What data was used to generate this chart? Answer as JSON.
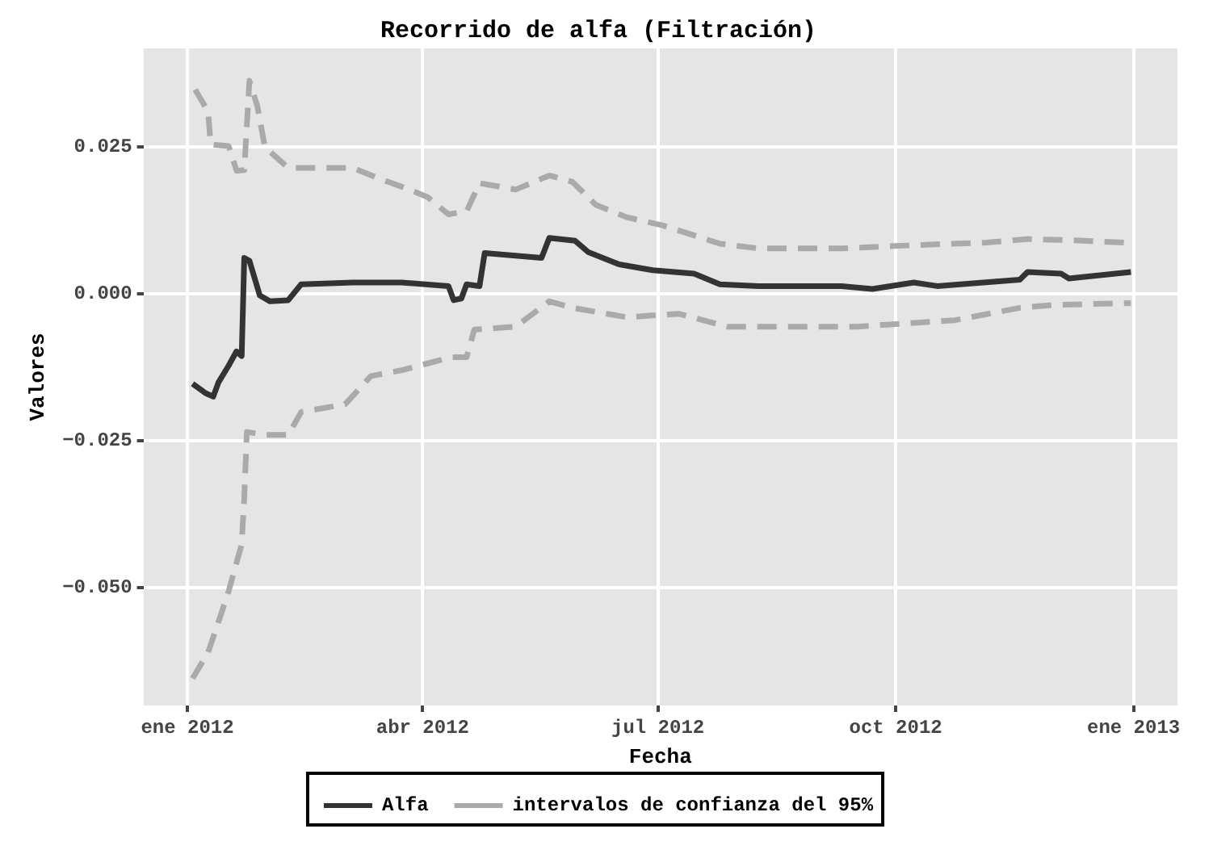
{
  "chart_data": {
    "type": "line",
    "title": "Recorrido de alfa (Filtración)",
    "xlabel": "Fecha",
    "ylabel": "Valores",
    "xlim": [
      "2011-12-15",
      "2013-01-18"
    ],
    "xticks": [
      {
        "value": "2012-01-01",
        "label": "ene 2012"
      },
      {
        "value": "2012-04-01",
        "label": "abr 2012"
      },
      {
        "value": "2012-07-01",
        "label": "jul 2012"
      },
      {
        "value": "2012-10-01",
        "label": "oct 2012"
      },
      {
        "value": "2013-01-01",
        "label": "ene 2013"
      }
    ],
    "ylim": [
      -0.07,
      0.0417
    ],
    "yticks": [
      {
        "value": -0.05,
        "label": "−0.050"
      },
      {
        "value": -0.025,
        "label": "−0.025"
      },
      {
        "value": 0,
        "label": "0.000"
      },
      {
        "value": 0.025,
        "label": "0.025"
      }
    ],
    "grid": true,
    "legend": "bottom",
    "marker": "none",
    "series": [
      {
        "name": "Alfa",
        "color": "#333333",
        "line_style": "solid",
        "x": [
          "2012-01-03",
          "2012-01-08",
          "2012-01-11",
          "2012-01-13",
          "2012-01-17",
          "2012-01-20",
          "2012-01-22",
          "2012-01-23",
          "2012-01-25",
          "2012-01-29",
          "2012-02-02",
          "2012-02-09",
          "2012-02-14",
          "2012-03-05",
          "2012-03-24",
          "2012-04-11",
          "2012-04-13",
          "2012-04-16",
          "2012-04-18",
          "2012-04-23",
          "2012-04-25",
          "2012-05-17",
          "2012-05-20",
          "2012-05-30",
          "2012-06-04",
          "2012-06-16",
          "2012-06-29",
          "2012-07-15",
          "2012-07-25",
          "2012-08-09",
          "2012-09-10",
          "2012-09-22",
          "2012-10-08",
          "2012-10-17",
          "2012-11-18",
          "2012-11-21",
          "2012-12-04",
          "2012-12-07",
          "2012-12-31"
        ],
        "values": [
          -0.0153,
          -0.0169,
          -0.0175,
          -0.0151,
          -0.0122,
          -0.0098,
          -0.0106,
          0.0061,
          0.0056,
          -0.0003,
          -0.0013,
          -0.0011,
          0.0016,
          0.0019,
          0.0019,
          0.0013,
          -0.0011,
          -0.0008,
          0.0016,
          0.0013,
          0.0069,
          0.0061,
          0.0095,
          0.009,
          0.0071,
          0.005,
          0.004,
          0.0034,
          0.0016,
          0.0013,
          0.0013,
          0.0008,
          0.0019,
          0.0013,
          0.0024,
          0.0037,
          0.0034,
          0.0026,
          0.0037
        ]
      },
      {
        "name": "intervalos de confianza del 95%",
        "color": "#aaaaaa",
        "line_style": "dashed",
        "x": [
          "2012-01-04",
          "2012-01-09",
          "2012-01-10",
          "2012-01-17",
          "2012-01-20",
          "2012-01-23",
          "2012-01-25",
          "2012-01-28",
          "2012-01-31",
          "2012-02-09",
          "2012-03-05",
          "2012-03-15",
          "2012-03-27",
          "2012-04-03",
          "2012-04-11",
          "2012-04-18",
          "2012-04-23",
          "2012-05-07",
          "2012-05-20",
          "2012-05-29",
          "2012-06-07",
          "2012-06-19",
          "2012-07-03",
          "2012-07-25",
          "2012-08-09",
          "2012-09-10",
          "2012-10-05",
          "2012-11-05",
          "2012-11-21",
          "2012-12-07",
          "2012-12-29"
        ],
        "values": [
          0.0347,
          0.031,
          0.0254,
          0.0251,
          0.0209,
          0.021,
          0.0362,
          0.032,
          0.0249,
          0.0214,
          0.0214,
          0.0196,
          0.0177,
          0.0164,
          0.0135,
          0.014,
          0.0188,
          0.0177,
          0.0201,
          0.019,
          0.0151,
          0.013,
          0.0116,
          0.0085,
          0.0077,
          0.0077,
          0.0082,
          0.0087,
          0.0093,
          0.0091,
          0.0087
        ]
      },
      {
        "color": "#aaaaaa",
        "line_style": "dashed",
        "x": [
          "2012-01-03",
          "2012-01-09",
          "2012-01-14",
          "2012-01-17",
          "2012-01-22",
          "2012-01-23",
          "2012-01-24",
          "2012-01-31",
          "2012-02-09",
          "2012-02-14",
          "2012-03-02",
          "2012-03-12",
          "2012-03-24",
          "2012-04-12",
          "2012-04-18",
          "2012-04-21",
          "2012-05-07",
          "2012-05-20",
          "2012-05-29",
          "2012-06-19",
          "2012-07-09",
          "2012-07-28",
          "2012-09-16",
          "2012-10-24",
          "2012-11-18",
          "2012-12-01",
          "2012-12-31"
        ],
        "values": [
          -0.0654,
          -0.061,
          -0.0545,
          -0.0505,
          -0.0426,
          -0.0347,
          -0.0235,
          -0.024,
          -0.024,
          -0.0201,
          -0.0188,
          -0.014,
          -0.013,
          -0.0108,
          -0.0108,
          -0.0061,
          -0.0056,
          -0.0013,
          -0.0024,
          -0.004,
          -0.0034,
          -0.0056,
          -0.0056,
          -0.0045,
          -0.0024,
          -0.0019,
          -0.0016
        ]
      }
    ]
  }
}
